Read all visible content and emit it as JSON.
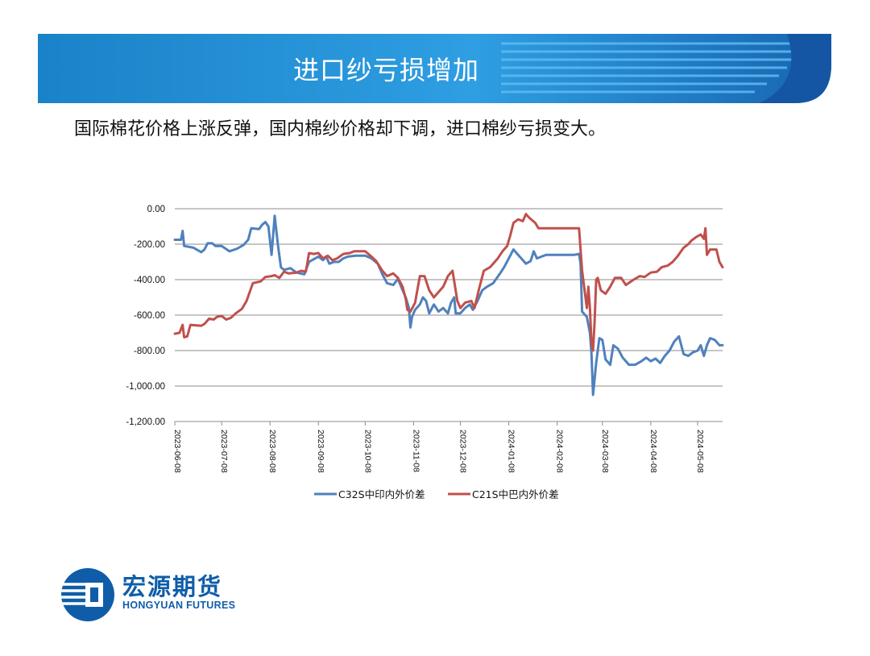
{
  "header": {
    "title": "进口纱亏损增加"
  },
  "subtitle": "国际棉花价格上涨反弹，国内棉纱价格却下调，进口棉纱亏损变大。",
  "brand": {
    "name_cn": "宏源期货",
    "name_en": "HONGYUAN FUTURES",
    "color": "#0f5da9"
  },
  "chart_data": {
    "type": "line",
    "title": "",
    "xlabel": "",
    "ylabel": "",
    "ylim": [
      -1200,
      0
    ],
    "ytick_step": 200,
    "yticks": [
      "0.00",
      "-200.00",
      "-400.00",
      "-600.00",
      "-800.00",
      "-1,000.00",
      "-1,200.00"
    ],
    "xlim": [
      "2023-06-08",
      "2024-05-24"
    ],
    "xticks": [
      "2023-06-08",
      "2023-07-08",
      "2023-08-08",
      "2023-09-08",
      "2023-10-08",
      "2023-11-08",
      "2023-12-08",
      "2024-01-08",
      "2024-02-08",
      "2024-03-08",
      "2024-04-08",
      "2024-05-08"
    ],
    "grid": "horizontal",
    "legend": "bottom",
    "series": [
      {
        "name": "C32S中印内外价差",
        "color": "#4f81bd",
        "points": [
          [
            "2023-06-08",
            -175
          ],
          [
            "2023-06-12",
            -175
          ],
          [
            "2023-06-13",
            -125
          ],
          [
            "2023-06-14",
            -210
          ],
          [
            "2023-06-20",
            -220
          ],
          [
            "2023-06-25",
            -245
          ],
          [
            "2023-06-27",
            -230
          ],
          [
            "2023-06-29",
            -195
          ],
          [
            "2023-07-02",
            -195
          ],
          [
            "2023-07-04",
            -210
          ],
          [
            "2023-07-08",
            -210
          ],
          [
            "2023-07-13",
            -240
          ],
          [
            "2023-07-18",
            -225
          ],
          [
            "2023-07-22",
            -205
          ],
          [
            "2023-07-25",
            -175
          ],
          [
            "2023-07-27",
            -110
          ],
          [
            "2023-08-01",
            -115
          ],
          [
            "2023-08-03",
            -90
          ],
          [
            "2023-08-05",
            -75
          ],
          [
            "2023-08-07",
            -100
          ],
          [
            "2023-08-09",
            -260
          ],
          [
            "2023-08-11",
            -40
          ],
          [
            "2023-08-13",
            -200
          ],
          [
            "2023-08-15",
            -330
          ],
          [
            "2023-08-17",
            -345
          ],
          [
            "2023-08-21",
            -335
          ],
          [
            "2023-08-25",
            -360
          ],
          [
            "2023-08-30",
            -370
          ],
          [
            "2023-09-02",
            -300
          ],
          [
            "2023-09-05",
            -285
          ],
          [
            "2023-09-08",
            -270
          ],
          [
            "2023-09-11",
            -290
          ],
          [
            "2023-09-13",
            -270
          ],
          [
            "2023-09-15",
            -310
          ],
          [
            "2023-09-18",
            -300
          ],
          [
            "2023-09-21",
            -300
          ],
          [
            "2023-09-24",
            -280
          ],
          [
            "2023-09-27",
            -270
          ],
          [
            "2023-10-02",
            -265
          ],
          [
            "2023-10-08",
            -265
          ],
          [
            "2023-10-12",
            -280
          ],
          [
            "2023-10-16",
            -310
          ],
          [
            "2023-10-19",
            -370
          ],
          [
            "2023-10-22",
            -420
          ],
          [
            "2023-10-26",
            -430
          ],
          [
            "2023-10-29",
            -395
          ],
          [
            "2023-11-01",
            -460
          ],
          [
            "2023-11-03",
            -500
          ],
          [
            "2023-11-05",
            -560
          ],
          [
            "2023-11-06",
            -670
          ],
          [
            "2023-11-07",
            -610
          ],
          [
            "2023-11-09",
            -570
          ],
          [
            "2023-11-12",
            -540
          ],
          [
            "2023-11-14",
            -500
          ],
          [
            "2023-11-16",
            -520
          ],
          [
            "2023-11-18",
            -590
          ],
          [
            "2023-11-21",
            -540
          ],
          [
            "2023-11-24",
            -580
          ],
          [
            "2023-11-27",
            -560
          ],
          [
            "2023-11-30",
            -590
          ],
          [
            "2023-12-02",
            -530
          ],
          [
            "2023-12-04",
            -500
          ],
          [
            "2023-12-05",
            -590
          ],
          [
            "2023-12-08",
            -590
          ],
          [
            "2023-12-11",
            -560
          ],
          [
            "2023-12-14",
            -540
          ],
          [
            "2023-12-16",
            -570
          ],
          [
            "2023-12-19",
            -520
          ],
          [
            "2023-12-22",
            -460
          ],
          [
            "2023-12-25",
            -440
          ],
          [
            "2023-12-29",
            -420
          ],
          [
            "2024-01-02",
            -370
          ],
          [
            "2024-01-05",
            -330
          ],
          [
            "2024-01-08",
            -280
          ],
          [
            "2024-01-11",
            -230
          ],
          [
            "2024-01-14",
            -260
          ],
          [
            "2024-01-17",
            -290
          ],
          [
            "2024-01-19",
            -310
          ],
          [
            "2024-01-22",
            -295
          ],
          [
            "2024-01-24",
            -240
          ],
          [
            "2024-01-26",
            -280
          ],
          [
            "2024-01-29",
            -270
          ],
          [
            "2024-02-01",
            -260
          ],
          [
            "2024-02-05",
            -260
          ],
          [
            "2024-02-12",
            -260
          ],
          [
            "2024-02-19",
            -260
          ],
          [
            "2024-02-22",
            -255
          ],
          [
            "2024-02-23",
            -310
          ],
          [
            "2024-02-24",
            -580
          ],
          [
            "2024-02-27",
            -610
          ],
          [
            "2024-02-29",
            -700
          ],
          [
            "2024-03-01",
            -820
          ],
          [
            "2024-03-02",
            -1050
          ],
          [
            "2024-03-04",
            -870
          ],
          [
            "2024-03-06",
            -730
          ],
          [
            "2024-03-08",
            -740
          ],
          [
            "2024-03-10",
            -850
          ],
          [
            "2024-03-13",
            -880
          ],
          [
            "2024-03-15",
            -770
          ],
          [
            "2024-03-18",
            -790
          ],
          [
            "2024-03-21",
            -840
          ],
          [
            "2024-03-25",
            -880
          ],
          [
            "2024-03-29",
            -880
          ],
          [
            "2024-04-02",
            -860
          ],
          [
            "2024-04-05",
            -840
          ],
          [
            "2024-04-08",
            -860
          ],
          [
            "2024-04-11",
            -845
          ],
          [
            "2024-04-14",
            -870
          ],
          [
            "2024-04-17",
            -830
          ],
          [
            "2024-04-20",
            -800
          ],
          [
            "2024-04-23",
            -750
          ],
          [
            "2024-04-26",
            -720
          ],
          [
            "2024-04-29",
            -820
          ],
          [
            "2024-05-02",
            -830
          ],
          [
            "2024-05-05",
            -810
          ],
          [
            "2024-05-08",
            -800
          ],
          [
            "2024-05-10",
            -770
          ],
          [
            "2024-05-12",
            -830
          ],
          [
            "2024-05-14",
            -770
          ],
          [
            "2024-05-16",
            -730
          ],
          [
            "2024-05-19",
            -740
          ],
          [
            "2024-05-22",
            -770
          ],
          [
            "2024-05-24",
            -770
          ]
        ]
      },
      {
        "name": "C21S中巴内外价差",
        "color": "#c0504d",
        "points": [
          [
            "2023-06-08",
            -705
          ],
          [
            "2023-06-11",
            -700
          ],
          [
            "2023-06-13",
            -655
          ],
          [
            "2023-06-14",
            -725
          ],
          [
            "2023-06-16",
            -720
          ],
          [
            "2023-06-18",
            -655
          ],
          [
            "2023-06-25",
            -660
          ],
          [
            "2023-06-27",
            -650
          ],
          [
            "2023-06-30",
            -620
          ],
          [
            "2023-07-03",
            -625
          ],
          [
            "2023-07-05",
            -610
          ],
          [
            "2023-07-08",
            -605
          ],
          [
            "2023-07-11",
            -625
          ],
          [
            "2023-07-14",
            -615
          ],
          [
            "2023-07-17",
            -590
          ],
          [
            "2023-07-21",
            -565
          ],
          [
            "2023-07-24",
            -520
          ],
          [
            "2023-07-28",
            -420
          ],
          [
            "2023-08-02",
            -410
          ],
          [
            "2023-08-05",
            -385
          ],
          [
            "2023-08-09",
            -380
          ],
          [
            "2023-08-11",
            -375
          ],
          [
            "2023-08-14",
            -390
          ],
          [
            "2023-08-17",
            -355
          ],
          [
            "2023-08-20",
            -365
          ],
          [
            "2023-08-25",
            -360
          ],
          [
            "2023-08-28",
            -350
          ],
          [
            "2023-08-31",
            -355
          ],
          [
            "2023-09-02",
            -250
          ],
          [
            "2023-09-05",
            -255
          ],
          [
            "2023-09-08",
            -250
          ],
          [
            "2023-09-11",
            -280
          ],
          [
            "2023-09-14",
            -265
          ],
          [
            "2023-09-17",
            -290
          ],
          [
            "2023-09-20",
            -280
          ],
          [
            "2023-09-24",
            -255
          ],
          [
            "2023-09-28",
            -250
          ],
          [
            "2023-10-01",
            -240
          ],
          [
            "2023-10-08",
            -240
          ],
          [
            "2023-10-12",
            -270
          ],
          [
            "2023-10-15",
            -295
          ],
          [
            "2023-10-19",
            -350
          ],
          [
            "2023-10-22",
            -380
          ],
          [
            "2023-10-26",
            -365
          ],
          [
            "2023-10-29",
            -390
          ],
          [
            "2023-11-01",
            -440
          ],
          [
            "2023-11-03",
            -510
          ],
          [
            "2023-11-04",
            -570
          ],
          [
            "2023-11-06",
            -580
          ],
          [
            "2023-11-09",
            -530
          ],
          [
            "2023-11-12",
            -380
          ],
          [
            "2023-11-15",
            -380
          ],
          [
            "2023-11-18",
            -460
          ],
          [
            "2023-11-21",
            -500
          ],
          [
            "2023-11-24",
            -470
          ],
          [
            "2023-11-27",
            -440
          ],
          [
            "2023-11-30",
            -380
          ],
          [
            "2023-12-03",
            -350
          ],
          [
            "2023-12-06",
            -520
          ],
          [
            "2023-12-08",
            -560
          ],
          [
            "2023-12-11",
            -530
          ],
          [
            "2023-12-15",
            -520
          ],
          [
            "2023-12-17",
            -560
          ],
          [
            "2023-12-20",
            -450
          ],
          [
            "2023-12-23",
            -350
          ],
          [
            "2023-12-27",
            -330
          ],
          [
            "2024-01-01",
            -280
          ],
          [
            "2024-01-04",
            -240
          ],
          [
            "2024-01-07",
            -210
          ],
          [
            "2024-01-09",
            -150
          ],
          [
            "2024-01-11",
            -80
          ],
          [
            "2024-01-14",
            -60
          ],
          [
            "2024-01-17",
            -70
          ],
          [
            "2024-01-19",
            -30
          ],
          [
            "2024-01-21",
            -50
          ],
          [
            "2024-01-25",
            -80
          ],
          [
            "2024-01-27",
            -110
          ],
          [
            "2024-02-01",
            -110
          ],
          [
            "2024-02-08",
            -110
          ],
          [
            "2024-02-15",
            -110
          ],
          [
            "2024-02-22",
            -110
          ],
          [
            "2024-02-24",
            -350
          ],
          [
            "2024-02-27",
            -560
          ],
          [
            "2024-02-28",
            -440
          ],
          [
            "2024-02-29",
            -560
          ],
          [
            "2024-03-01",
            -760
          ],
          [
            "2024-03-02",
            -800
          ],
          [
            "2024-03-03",
            -640
          ],
          [
            "2024-03-04",
            -400
          ],
          [
            "2024-03-05",
            -390
          ],
          [
            "2024-03-07",
            -460
          ],
          [
            "2024-03-10",
            -480
          ],
          [
            "2024-03-13",
            -440
          ],
          [
            "2024-03-16",
            -390
          ],
          [
            "2024-03-20",
            -390
          ],
          [
            "2024-03-23",
            -430
          ],
          [
            "2024-03-28",
            -400
          ],
          [
            "2024-04-01",
            -380
          ],
          [
            "2024-04-04",
            -385
          ],
          [
            "2024-04-08",
            -360
          ],
          [
            "2024-04-12",
            -355
          ],
          [
            "2024-04-15",
            -330
          ],
          [
            "2024-04-19",
            -320
          ],
          [
            "2024-04-22",
            -300
          ],
          [
            "2024-04-25",
            -270
          ],
          [
            "2024-04-29",
            -220
          ],
          [
            "2024-05-02",
            -200
          ],
          [
            "2024-05-04",
            -180
          ],
          [
            "2024-05-07",
            -160
          ],
          [
            "2024-05-10",
            -145
          ],
          [
            "2024-05-12",
            -170
          ],
          [
            "2024-05-13",
            -110
          ],
          [
            "2024-05-14",
            -260
          ],
          [
            "2024-05-16",
            -230
          ],
          [
            "2024-05-20",
            -230
          ],
          [
            "2024-05-22",
            -300
          ],
          [
            "2024-05-24",
            -330
          ]
        ]
      }
    ]
  }
}
